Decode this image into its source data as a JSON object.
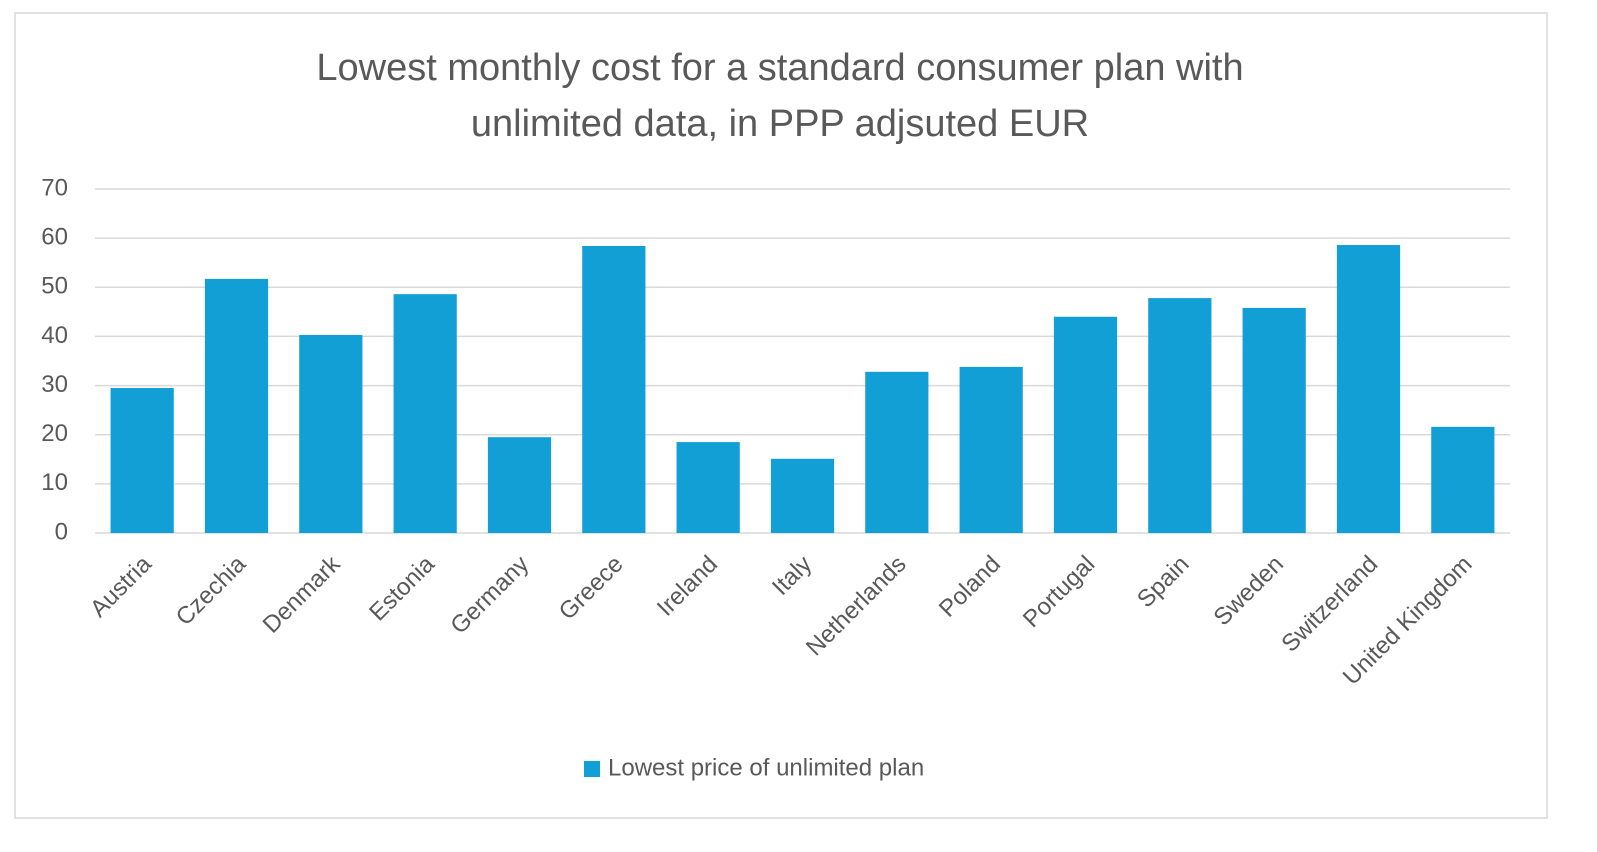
{
  "chart_data": {
    "type": "bar",
    "title": "Lowest monthly cost for a standard consumer plan with unlimited data, in PPP adjsuted EUR",
    "categories": [
      "Austria",
      "Czechia",
      "Denmark",
      "Estonia",
      "Germany",
      "Greece",
      "Ireland",
      "Italy",
      "Netherlands",
      "Poland",
      "Portugal",
      "Spain",
      "Sweden",
      "Switzerland",
      "United Kingdom"
    ],
    "series": [
      {
        "name": "Lowest price of unlimited plan",
        "color": "#119fd6",
        "values": [
          29.5,
          51.7,
          40.3,
          48.6,
          19.5,
          58.4,
          18.5,
          15.1,
          32.8,
          33.8,
          44.0,
          47.8,
          45.8,
          58.6,
          21.6
        ]
      }
    ],
    "ylim": [
      0,
      70
    ],
    "yticks": [
      0,
      10,
      20,
      30,
      40,
      50,
      60,
      70
    ],
    "grid": true,
    "legend": "bottom"
  }
}
